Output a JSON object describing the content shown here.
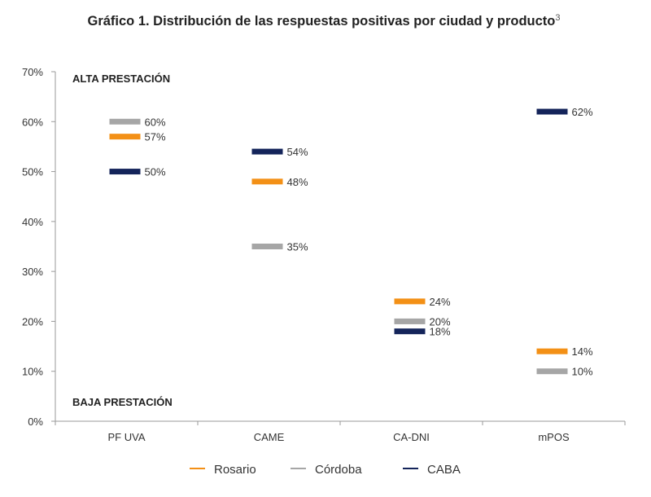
{
  "chart_data": {
    "type": "dot",
    "title": "Gráfico 1. Distribución de las respuestas positivas por ciudad y producto",
    "title_superscript": "3",
    "categories": [
      "PF UVA",
      "CAME",
      "CA-DNI",
      "mPOS"
    ],
    "ylim": [
      0,
      70
    ],
    "yticks": [
      0,
      10,
      20,
      30,
      40,
      50,
      60,
      70
    ],
    "ytick_labels": [
      "0%",
      "10%",
      "20%",
      "30%",
      "40%",
      "50%",
      "60%",
      "70%"
    ],
    "annotations": {
      "top": "ALTA PRESTACIÓN",
      "bottom": "BAJA PRESTACIÓN"
    },
    "series": [
      {
        "name": "Rosario",
        "color": "#F39016",
        "values": [
          57,
          48,
          24,
          14
        ],
        "labels": [
          "57%",
          "48%",
          "24%",
          "14%"
        ]
      },
      {
        "name": "Córdoba",
        "color": "#A6A6A6",
        "values": [
          60,
          35,
          20,
          10
        ],
        "labels": [
          "60%",
          "35%",
          "20%",
          "10%"
        ]
      },
      {
        "name": "CABA",
        "color": "#14245A",
        "values": [
          50,
          54,
          18,
          62
        ],
        "labels": [
          "50%",
          "54%",
          "18%",
          "62%"
        ]
      }
    ],
    "legend_position": "bottom"
  }
}
